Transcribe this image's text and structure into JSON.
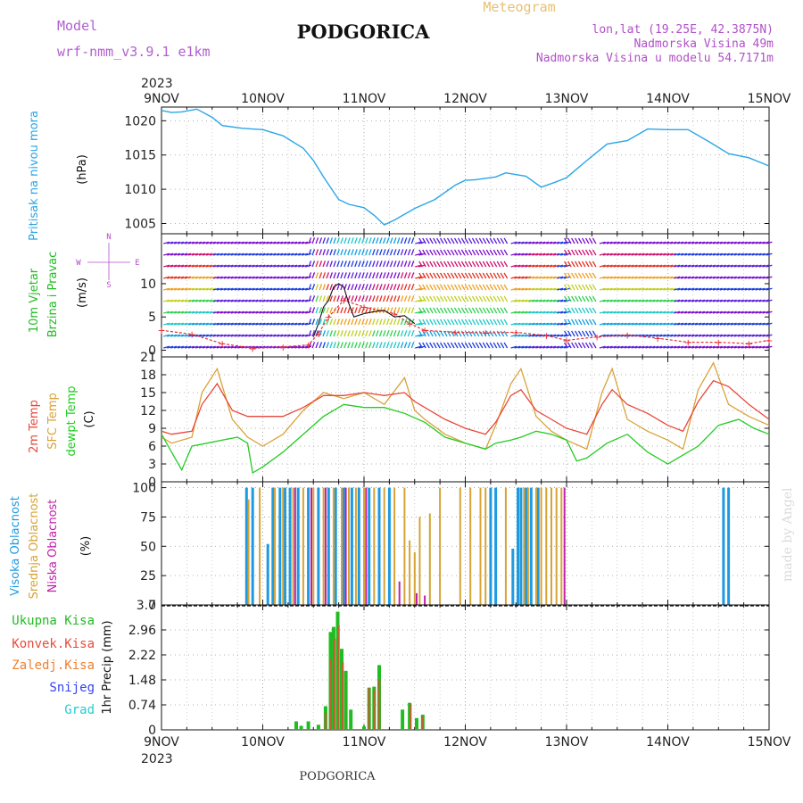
{
  "header": {
    "model_label": "Model",
    "model_name": "wrf-nmm_v3.9.1 e1km",
    "station": "PODGORICA",
    "product": "Meteogram",
    "lonlat": "lon,lat (19.25E, 42.3875N)",
    "elevation": "Nadmorska Visina 49m",
    "model_elevation": "Nadmorska Visina u modelu 54.7171m",
    "footer_station": "PODGORICA",
    "watermark": "made by Angel"
  },
  "colors": {
    "pressure": "#2aa6e6",
    "wind_label": "#22bb22",
    "temp2m": "#e8473a",
    "sfc": "#d9a23a",
    "dew": "#22cc22",
    "high_cloud": "#1e9be0",
    "mid_cloud": "#d6a336",
    "low_cloud": "#c020a8",
    "total_precip": "#22bb22",
    "conv_precip": "#e84a3a",
    "frozen_precip": "#f08030",
    "snow": "#3344ee",
    "hail": "#22cccc",
    "gust": "#111111"
  },
  "chart_data": [
    {
      "type": "line",
      "panel": "pressure",
      "ylabel_top": "Pritisak na nivou mora",
      "ylabel_unit": "(hPa)",
      "ylim": [
        1003.5,
        1022
      ],
      "yticks": [
        "1005",
        "1010",
        "1015",
        "1020"
      ],
      "x_top_year": "2023",
      "x_tick_labels": [
        "9NOV",
        "10NOV",
        "11NOV",
        "12NOV",
        "13NOV",
        "14NOV",
        "15NOV"
      ],
      "x_range_days": [
        9,
        15
      ],
      "series": [
        {
          "x": [
            9.0,
            9.1,
            9.2,
            9.35,
            9.5,
            9.6,
            9.8,
            10.0,
            10.2,
            10.4,
            10.5,
            10.6,
            10.75,
            10.85,
            11.0,
            11.1,
            11.2,
            11.3,
            11.5,
            11.7,
            11.9,
            12.0,
            12.1,
            12.3,
            12.4,
            12.6,
            12.75,
            12.9,
            13.0,
            13.2,
            13.4,
            13.6,
            13.8,
            14.0,
            14.2,
            14.4,
            14.6,
            14.8,
            15.0
          ],
          "y": [
            1021.5,
            1021.2,
            1021.3,
            1021.7,
            1020.5,
            1019.3,
            1018.9,
            1018.7,
            1017.8,
            1016.0,
            1014.2,
            1011.8,
            1008.5,
            1007.8,
            1007.3,
            1006.2,
            1004.8,
            1005.5,
            1007.2,
            1008.5,
            1010.6,
            1011.3,
            1011.4,
            1011.8,
            1012.4,
            1011.9,
            1010.3,
            1011.1,
            1011.7,
            1014.2,
            1016.6,
            1017.1,
            1018.8,
            1018.7,
            1018.7,
            1017.0,
            1015.2,
            1014.6,
            1013.4
          ]
        }
      ]
    },
    {
      "type": "line",
      "panel": "wind",
      "ylabel_top": "10m Vjetar",
      "ylabel_bottom": "Brzina i Pravac",
      "ylabel_unit": "(m/s)",
      "compass": [
        "N",
        "S",
        "E",
        "W"
      ],
      "ylim": [
        -1,
        17.5
      ],
      "yticks": [
        "0",
        "5",
        "10"
      ],
      "series": [
        {
          "name": "speed",
          "x": [
            9.0,
            9.3,
            9.6,
            9.9,
            10.2,
            10.45,
            10.55,
            10.65,
            10.8,
            11.0,
            11.3,
            11.45,
            11.6,
            11.9,
            12.2,
            12.5,
            12.8,
            13.0,
            13.3,
            13.6,
            13.9,
            14.2,
            14.5,
            14.8,
            15.0
          ],
          "y": [
            3.0,
            2.4,
            1.0,
            0.3,
            0.5,
            0.8,
            2.5,
            5.0,
            7.5,
            6.5,
            5.5,
            4.0,
            3.0,
            2.7,
            2.6,
            2.7,
            2.2,
            1.5,
            2.0,
            2.3,
            1.8,
            1.2,
            1.2,
            1.0,
            1.5
          ]
        },
        {
          "name": "gust",
          "x": [
            10.5,
            10.55,
            10.6,
            10.65,
            10.7,
            10.75,
            10.8,
            10.85,
            10.9,
            11.0,
            11.1,
            11.2,
            11.3,
            11.4,
            11.5
          ],
          "y": [
            2.0,
            4.0,
            6.5,
            7.5,
            9.5,
            10.0,
            9.5,
            7.0,
            5.0,
            5.5,
            5.8,
            6.0,
            5.0,
            5.2,
            4.0
          ]
        }
      ]
    },
    {
      "type": "line",
      "panel": "temperature",
      "ylabel_1": "2m Temp",
      "ylabel_2": "SFC Temp",
      "ylabel_3": "dewpt Temp",
      "ylabel_unit": "(C)",
      "ylim": [
        0,
        21
      ],
      "yticks": [
        "0",
        "3",
        "6",
        "9",
        "12",
        "15",
        "18",
        "21"
      ],
      "series": [
        {
          "name": "2m Temp",
          "x": [
            9.0,
            9.1,
            9.3,
            9.4,
            9.55,
            9.7,
            9.85,
            10.0,
            10.2,
            10.4,
            10.6,
            10.8,
            11.0,
            11.2,
            11.4,
            11.5,
            11.6,
            11.8,
            12.0,
            12.2,
            12.3,
            12.45,
            12.55,
            12.7,
            12.85,
            13.0,
            13.2,
            13.35,
            13.45,
            13.6,
            13.8,
            14.0,
            14.15,
            14.3,
            14.45,
            14.6,
            14.8,
            15.0
          ],
          "y": [
            8.5,
            8.0,
            8.5,
            13.0,
            16.5,
            12.0,
            11.0,
            11.0,
            11.0,
            12.5,
            14.5,
            14.5,
            15.0,
            14.5,
            15.0,
            13.5,
            12.5,
            10.5,
            9.0,
            8.0,
            10.0,
            14.5,
            15.5,
            12.0,
            10.5,
            9.0,
            8.0,
            13.0,
            15.5,
            13.0,
            11.5,
            9.5,
            8.5,
            13.5,
            17.0,
            16.0,
            13.0,
            10.5
          ]
        },
        {
          "name": "SFC Temp",
          "x": [
            9.0,
            9.1,
            9.3,
            9.4,
            9.55,
            9.7,
            9.85,
            10.0,
            10.2,
            10.4,
            10.6,
            10.8,
            11.0,
            11.2,
            11.4,
            11.5,
            11.6,
            11.8,
            12.0,
            12.2,
            12.3,
            12.45,
            12.55,
            12.7,
            12.85,
            13.0,
            13.2,
            13.35,
            13.45,
            13.6,
            13.8,
            14.0,
            14.15,
            14.3,
            14.45,
            14.6,
            14.8,
            15.0
          ],
          "y": [
            7.5,
            6.5,
            7.5,
            15.0,
            19.0,
            10.5,
            7.5,
            6.0,
            8.0,
            12.0,
            15.0,
            14.0,
            15.0,
            13.0,
            17.5,
            12.0,
            10.5,
            8.0,
            6.5,
            5.5,
            9.5,
            16.5,
            19.0,
            11.0,
            8.5,
            7.0,
            5.5,
            15.0,
            19.0,
            10.5,
            8.5,
            7.0,
            5.5,
            15.5,
            20.0,
            13.0,
            11.0,
            9.5
          ]
        },
        {
          "name": "dewpt Temp",
          "x": [
            9.0,
            9.1,
            9.2,
            9.3,
            9.45,
            9.6,
            9.75,
            9.85,
            9.9,
            10.0,
            10.2,
            10.4,
            10.6,
            10.8,
            11.0,
            11.2,
            11.4,
            11.6,
            11.8,
            12.0,
            12.2,
            12.3,
            12.45,
            12.55,
            12.7,
            12.85,
            13.0,
            13.1,
            13.2,
            13.4,
            13.6,
            13.8,
            14.0,
            14.1,
            14.3,
            14.5,
            14.7,
            14.85,
            15.0
          ],
          "y": [
            8.0,
            5.0,
            2.0,
            6.0,
            6.5,
            7.0,
            7.5,
            6.5,
            1.5,
            2.5,
            5.0,
            8.0,
            11.0,
            13.0,
            12.5,
            12.5,
            11.5,
            10.0,
            7.5,
            6.5,
            5.5,
            6.5,
            7.0,
            7.5,
            8.5,
            8.0,
            7.0,
            3.5,
            4.0,
            6.5,
            8.0,
            5.0,
            3.0,
            4.0,
            6.0,
            9.5,
            10.5,
            9.0,
            8.0
          ]
        }
      ]
    },
    {
      "type": "bar",
      "panel": "cloud",
      "ylabel_1": "Visoka Oblacnost",
      "ylabel_2": "Srednja Oblacnost",
      "ylabel_3": "Niska Oblacnost",
      "ylabel_unit": "(%)",
      "ylim": [
        0,
        100
      ],
      "yticks": [
        "0",
        "25",
        "50",
        "75",
        "100"
      ],
      "series": [
        {
          "name": "Visoka Oblacnost",
          "x": [
            9.84,
            9.9,
            10.05,
            10.1,
            10.17,
            10.22,
            10.27,
            10.35,
            10.45,
            10.55,
            10.65,
            10.72,
            10.8,
            10.88,
            10.95,
            11.05,
            11.15,
            11.25,
            12.25,
            12.3,
            12.47,
            12.52,
            12.55,
            12.6,
            12.65,
            12.72,
            14.55,
            14.6
          ],
          "y": [
            100,
            100,
            52,
            100,
            100,
            100,
            100,
            100,
            100,
            100,
            100,
            100,
            100,
            100,
            100,
            100,
            100,
            100,
            100,
            100,
            48,
            100,
            100,
            100,
            100,
            100,
            100,
            100
          ]
        },
        {
          "name": "Srednja Oblacnost",
          "x": [
            9.86,
            9.97,
            10.12,
            10.2,
            10.3,
            10.4,
            10.5,
            10.6,
            10.7,
            10.78,
            10.85,
            10.92,
            11.0,
            11.1,
            11.2,
            11.3,
            11.4,
            11.45,
            11.5,
            11.55,
            11.65,
            11.75,
            11.95,
            12.05,
            12.15,
            12.2,
            12.4,
            12.58,
            12.62,
            12.7,
            12.75,
            12.8,
            12.85,
            12.9,
            12.95
          ],
          "y": [
            90,
            100,
            100,
            100,
            100,
            100,
            100,
            100,
            100,
            100,
            100,
            100,
            100,
            100,
            100,
            100,
            100,
            55,
            45,
            75,
            78,
            100,
            100,
            100,
            100,
            100,
            100,
            100,
            100,
            100,
            100,
            100,
            100,
            100,
            100
          ]
        },
        {
          "name": "Niska Oblacnost",
          "x": [
            10.32,
            10.48,
            10.62,
            10.82,
            11.02,
            11.35,
            11.52,
            11.6,
            12.98
          ],
          "y": [
            100,
            100,
            100,
            100,
            100,
            20,
            10,
            8,
            100
          ]
        }
      ]
    },
    {
      "type": "bar",
      "panel": "precip",
      "legend": [
        "Ukupna Kisa",
        "Konvek.Kisa",
        "Zaledj.Kisa",
        "Snijeg",
        "Grad"
      ],
      "ylabel": "1hr Precip (mm)",
      "ylim": [
        0,
        3.7
      ],
      "yticks": [
        "0",
        "0.74",
        "1.48",
        "2.22",
        "2.96",
        "3.7"
      ],
      "x_bottom_year": "2023",
      "series": [
        {
          "name": "Ukupna Kisa",
          "x": [
            10.33,
            10.38,
            10.45,
            10.55,
            10.62,
            10.67,
            10.7,
            10.74,
            10.78,
            10.82,
            10.87,
            11.0,
            11.05,
            11.1,
            11.15,
            11.38,
            11.45,
            11.52,
            11.58
          ],
          "y": [
            0.25,
            0.12,
            0.25,
            0.15,
            0.7,
            2.9,
            3.05,
            3.5,
            2.4,
            1.75,
            0.6,
            0.1,
            1.25,
            1.28,
            1.92,
            0.6,
            0.8,
            0.35,
            0.45
          ]
        },
        {
          "name": "Konvek.Kisa",
          "x": [
            10.62,
            10.67,
            10.71,
            10.75,
            10.79,
            11.05,
            11.1,
            11.15,
            11.46,
            11.58
          ],
          "y": [
            0.5,
            2.1,
            2.7,
            3.1,
            2.0,
            1.25,
            1.2,
            1.5,
            0.75,
            0.4
          ]
        }
      ]
    }
  ],
  "footer_year": "2023"
}
